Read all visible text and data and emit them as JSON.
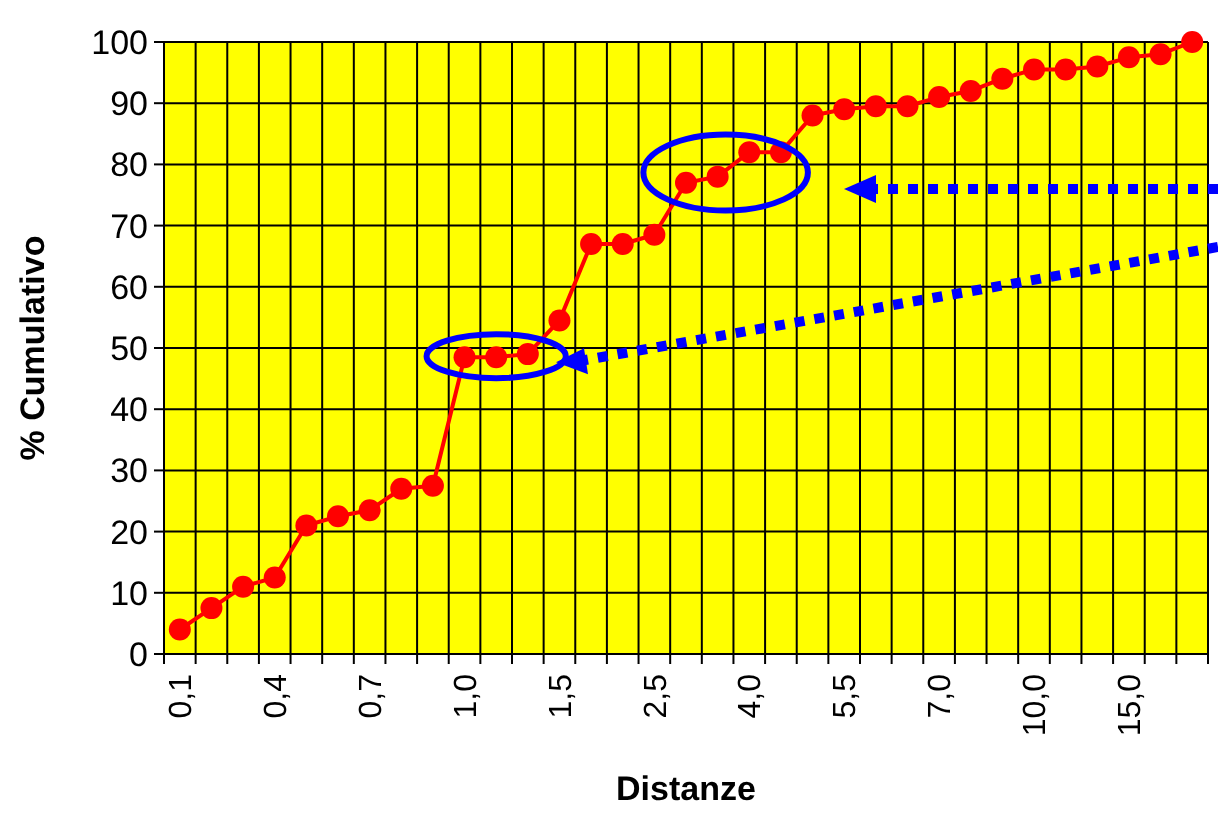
{
  "chart_data": {
    "type": "line",
    "xlabel": "Distanze",
    "ylabel": "% Cumulativo",
    "categories": [
      "0,1",
      null,
      null,
      "0,4",
      null,
      null,
      "0,7",
      null,
      null,
      "1,0",
      null,
      null,
      "1,5",
      null,
      null,
      "2,5",
      null,
      null,
      "4,0",
      null,
      null,
      "5,5",
      null,
      null,
      "7,0",
      null,
      null,
      "10,0",
      null,
      null,
      "15,0",
      null,
      null
    ],
    "series": [
      {
        "color": "#ff0000",
        "values": [
          4,
          7.5,
          11,
          12.5,
          21,
          22.5,
          23.5,
          27,
          27.5,
          48.5,
          48.5,
          49,
          54.5,
          67,
          67,
          68.5,
          77,
          78,
          82,
          82,
          88,
          89,
          89.5,
          89.5,
          91,
          92,
          94,
          95.5,
          95.5,
          96,
          97.5,
          98,
          100
        ]
      }
    ],
    "ylim": [
      0,
      100
    ],
    "yticks": [
      0,
      10,
      20,
      30,
      40,
      50,
      60,
      70,
      80,
      90,
      100
    ],
    "grid": true,
    "marker": "circle",
    "line_style": "solid"
  }
}
